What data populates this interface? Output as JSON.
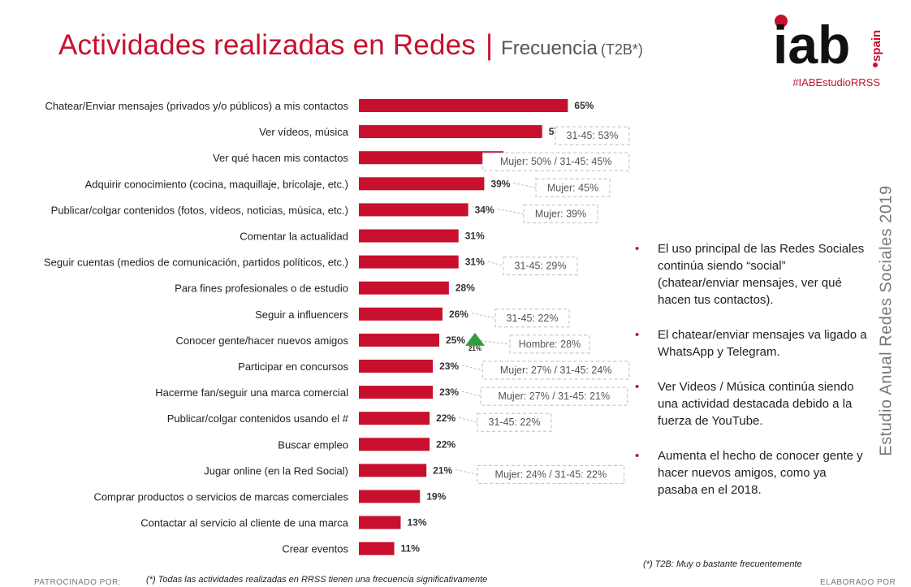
{
  "header": {
    "title": "Actividades realizadas en Redes",
    "separator": "|",
    "subtitle": "Frecuencia",
    "subtitle_tag": "(T2B*)",
    "hashtag": "#IABEstudioRRSS"
  },
  "logo": {
    "main_text": "iab",
    "sub_text": "spain"
  },
  "side_title": "Estudio Anual Redes Sociales 2019",
  "colors": {
    "bar": "#c8102e",
    "accent": "#c8102e",
    "triangle": "#2e9e3e",
    "box_border": "#bdbdbd",
    "box_text": "#555555"
  },
  "chart_data": {
    "type": "bar",
    "orientation": "horizontal",
    "categories": [
      "Chatear/Enviar mensajes (privados y/o públicos) a mis contactos",
      "Ver vídeos, música",
      "Ver qué hacen mis contactos",
      "Adquirir conocimiento (cocina, maquillaje, bricolaje, etc.)",
      "Publicar/colgar contenidos (fotos, vídeos, noticias, música, etc.)",
      "Comentar la actualidad",
      "Seguir cuentas (medios de comunicación, partidos políticos, etc.)",
      "Para fines profesionales o de estudio",
      "Seguir a influencers",
      "Conocer gente/hacer nuevos amigos",
      "Participar en concursos",
      "Hacerme fan/seguir una marca comercial",
      "Publicar/colgar contenidos usando el #",
      "Buscar empleo",
      "Jugar online (en la Red Social)",
      "Comprar productos o servicios de marcas comerciales",
      "Contactar al servicio al cliente de una marca",
      "Crear eventos"
    ],
    "values": [
      65,
      57,
      45,
      39,
      34,
      31,
      31,
      28,
      26,
      25,
      23,
      23,
      22,
      22,
      21,
      19,
      13,
      11
    ],
    "value_labels": [
      "65%",
      "57%",
      "45%",
      "39%",
      "34%",
      "31%",
      "31%",
      "28%",
      "26%",
      "25%",
      "23%",
      "23%",
      "22%",
      "22%",
      "21%",
      "19%",
      "13%",
      "11%"
    ],
    "xlim": [
      0,
      100
    ],
    "grid": false,
    "legend": "none",
    "annotations": [
      {
        "index": 1,
        "text": "31-45: 53%"
      },
      {
        "index": 2,
        "text": "Mujer: 50% / 31-45: 45%"
      },
      {
        "index": 3,
        "text": "Mujer: 45%"
      },
      {
        "index": 4,
        "text": "Mujer: 39%"
      },
      {
        "index": 6,
        "text": "31-45: 29%"
      },
      {
        "index": 8,
        "text": "31-45: 22%"
      },
      {
        "index": 9,
        "text": "Hombre: 28%"
      },
      {
        "index": 10,
        "text": "Mujer: 27% / 31-45: 24%"
      },
      {
        "index": 11,
        "text": "Mujer: 27% / 31-45: 21%"
      },
      {
        "index": 12,
        "text": "31-45: 22%"
      },
      {
        "index": 14,
        "text": "Mujer: 24% / 31-45: 22%"
      }
    ],
    "change_markers": [
      {
        "index": 9,
        "direction": "up",
        "label": "21%"
      }
    ]
  },
  "bullets": [
    "El uso principal de las Redes Sociales continúa siendo “social” (chatear/enviar mensajes, ver qué hacen tus contactos).",
    "El chatear/enviar mensajes va ligado a WhatsApp y Telegram.",
    "Ver Videos / Música continúa siendo una actividad destacada debido a la fuerza de YouTube.",
    "Aumenta el hecho de conocer gente y hacer nuevos amigos, como ya pasaba en el 2018."
  ],
  "footnotes": {
    "t2b": "(*) T2B: Muy o bastante frecuentemente",
    "all_activities": "(*) Todas las actividades realizadas en RRSS tienen una frecuencia significativamente",
    "sponsor_label": "PATROCINADO POR:",
    "elaborated_label": "ELABORADO POR"
  }
}
